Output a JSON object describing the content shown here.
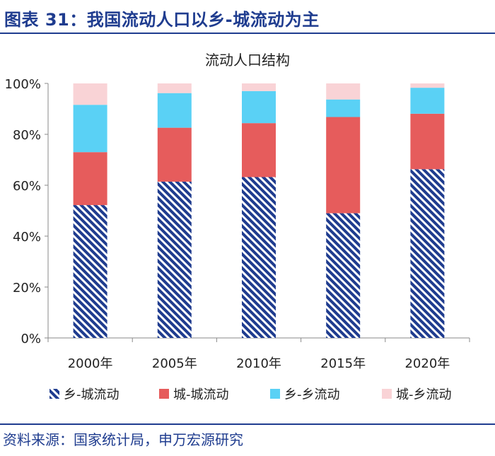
{
  "figure_title": "图表 31：我国流动人口以乡-城流动为主",
  "source": "资料来源：国家统计局，申万宏源研究",
  "colors": {
    "brand": "#1f3c8f",
    "rural_urban": "#1f3c8f",
    "urban_urban": "#e65c5c",
    "rural_rural": "#5ad1f5",
    "urban_rural": "#f9d3d6"
  },
  "chart_data": {
    "type": "bar",
    "stacked": true,
    "title": "流动人口结构",
    "categories": [
      "2000年",
      "2005年",
      "2010年",
      "2015年",
      "2020年"
    ],
    "series": [
      {
        "name": "乡-城流动",
        "values": [
          52.2,
          61.4,
          63.2,
          49.0,
          66.3
        ],
        "color": "#1f3c8f",
        "pattern": "diagonal-hatch"
      },
      {
        "name": "城-城流动",
        "values": [
          20.8,
          21.2,
          21.2,
          37.8,
          21.8
        ],
        "color": "#e65c5c"
      },
      {
        "name": "乡-乡流动",
        "values": [
          18.6,
          13.6,
          12.6,
          6.9,
          10.2
        ],
        "color": "#5ad1f5"
      },
      {
        "name": "城-乡流动",
        "values": [
          8.4,
          3.8,
          3.0,
          6.3,
          1.7
        ],
        "color": "#f9d3d6"
      }
    ],
    "ylim": [
      0,
      100
    ],
    "yticks": [
      "0%",
      "20%",
      "40%",
      "60%",
      "80%",
      "100%"
    ],
    "grid": false,
    "legend": "bottom"
  }
}
